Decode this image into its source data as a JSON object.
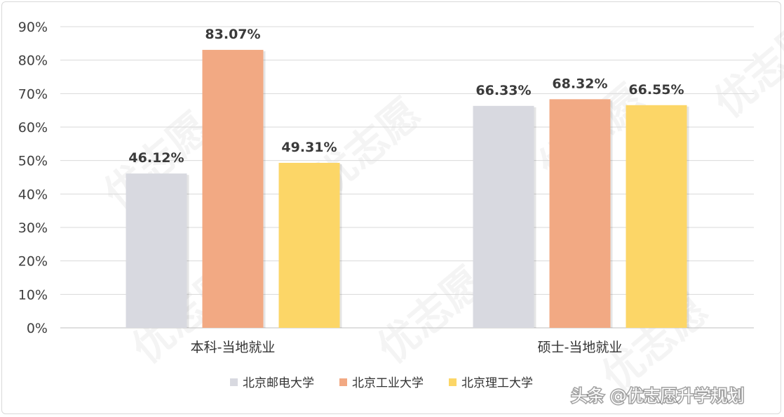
{
  "chart_data": {
    "type": "bar",
    "categories": [
      "本科-当地就业",
      "硕士-当地就业"
    ],
    "series": [
      {
        "name": "北京邮电大学",
        "color": "#d8d9e0",
        "values": [
          46.12,
          66.33
        ],
        "labels": [
          "46.12%",
          "66.33%"
        ]
      },
      {
        "name": "北京工业大学",
        "color": "#f2a983",
        "values": [
          83.07,
          68.32
        ],
        "labels": [
          "83.07%",
          "68.32%"
        ]
      },
      {
        "name": "北京理工大学",
        "color": "#fcd667",
        "values": [
          49.31,
          66.55
        ],
        "labels": [
          "49.31%",
          "66.55%"
        ]
      }
    ],
    "ylim": [
      0,
      90
    ],
    "yticks": [
      0,
      10,
      20,
      30,
      40,
      50,
      60,
      70,
      80,
      90
    ],
    "ytick_labels": [
      "0%",
      "10%",
      "20%",
      "30%",
      "40%",
      "50%",
      "60%",
      "70%",
      "80%",
      "90%"
    ],
    "grid": true,
    "legend": "bottom-center"
  },
  "watermark": {
    "text": "优志愿"
  },
  "credit": {
    "text": "头条 @优志愿升学规划"
  }
}
